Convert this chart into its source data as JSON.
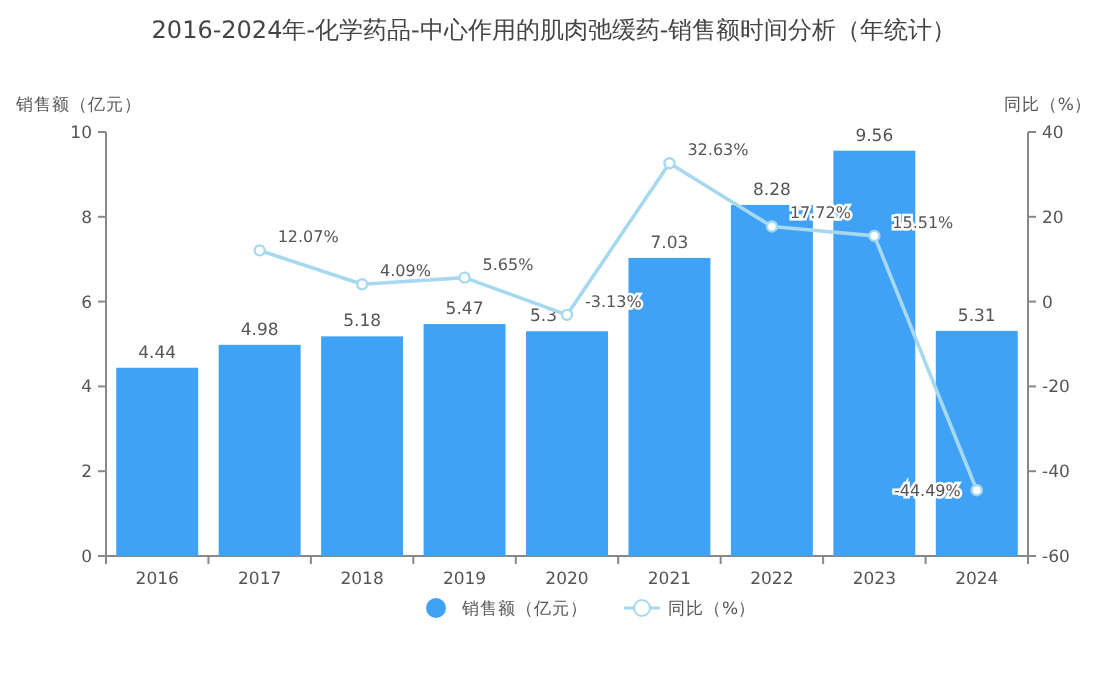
{
  "chart_data": {
    "type": "bar",
    "title": "2016-2024年-化学药品-中心作用的肌肉弛缓药-销售额时间分析（年统计）",
    "ylabel": "销售额（亿元）",
    "y2label": "同比（%）",
    "categories": [
      "2016",
      "2017",
      "2018",
      "2019",
      "2020",
      "2021",
      "2022",
      "2023",
      "2024"
    ],
    "series": [
      {
        "name": "销售额（亿元）",
        "color": "#3fa2f7",
        "values": [
          4.44,
          4.98,
          5.18,
          5.47,
          5.3,
          7.03,
          8.28,
          9.56,
          5.31
        ]
      },
      {
        "name": "同比（%）",
        "type": "line",
        "axis": "y2",
        "color": "#a6d9f0",
        "marker": "circle",
        "values": [
          null,
          12.07,
          4.09,
          5.65,
          -3.13,
          32.63,
          17.72,
          15.51,
          -44.49
        ],
        "value_labels": [
          null,
          "12.07%",
          "4.09%",
          "5.65%",
          "-3.13%",
          "32.63%",
          "17.72%",
          "15.51%",
          "-44.49%"
        ]
      }
    ],
    "ylim": [
      0,
      10
    ],
    "yticks": [
      0,
      2,
      4,
      6,
      8,
      10
    ],
    "y2lim": [
      -60,
      40
    ],
    "y2ticks": [
      -60,
      -40,
      -20,
      0,
      20,
      40
    ],
    "data_labels": true,
    "legend": "bottom",
    "grid": false
  }
}
